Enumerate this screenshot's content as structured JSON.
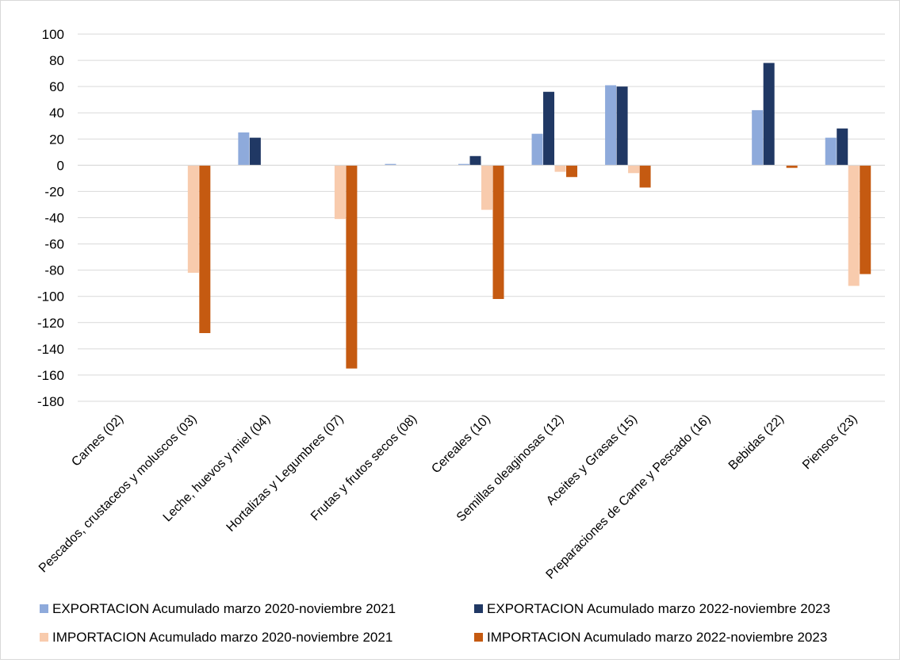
{
  "chart_data": {
    "type": "bar",
    "title": "",
    "xlabel": "",
    "ylabel": "",
    "ylim": [
      -180,
      100
    ],
    "yticks": [
      100,
      80,
      60,
      40,
      20,
      0,
      -20,
      -40,
      -60,
      -80,
      -100,
      -120,
      -140,
      -160,
      -180
    ],
    "grid": true,
    "legend_position": "bottom",
    "categories": [
      "Carnes  (02)",
      "Pescados, crustaceos y moluscos (03)",
      "Leche, huevos y miel (04)",
      "Hortalizas y Legumbres (07)",
      "Frutas y frutos secos (08)",
      "Cereales (10)",
      "Semillas oleaginosas (12)",
      "Aceites y Grasas (15)",
      "Preparaciones de Carne y Pescado (16)",
      "Bebidas (22)",
      "Piensos (23)"
    ],
    "series": [
      {
        "name": "EXPORTACION Acumulado marzo 2020-noviembre 2021",
        "color": "#8eaadb",
        "values": [
          0,
          0,
          25,
          0,
          1,
          1,
          24,
          61,
          0,
          42,
          21
        ]
      },
      {
        "name": "EXPORTACION Acumulado marzo 2022-noviembre 2023",
        "color": "#203864",
        "values": [
          0,
          0,
          21,
          0,
          0,
          7,
          56,
          60,
          0,
          78,
          28
        ]
      },
      {
        "name": "IMPORTACION Acumulado marzo 2020-noviembre 2021",
        "color": "#f8cbad",
        "values": [
          0,
          -82,
          0,
          -41,
          0,
          -34,
          -5,
          -6,
          0,
          0,
          -92
        ]
      },
      {
        "name": "IMPORTACION Acumulado marzo 2022-noviembre 2023",
        "color": "#c55a11",
        "values": [
          0,
          -128,
          0,
          -155,
          0,
          -102,
          -9,
          -17,
          0,
          -2,
          -83
        ]
      }
    ]
  }
}
